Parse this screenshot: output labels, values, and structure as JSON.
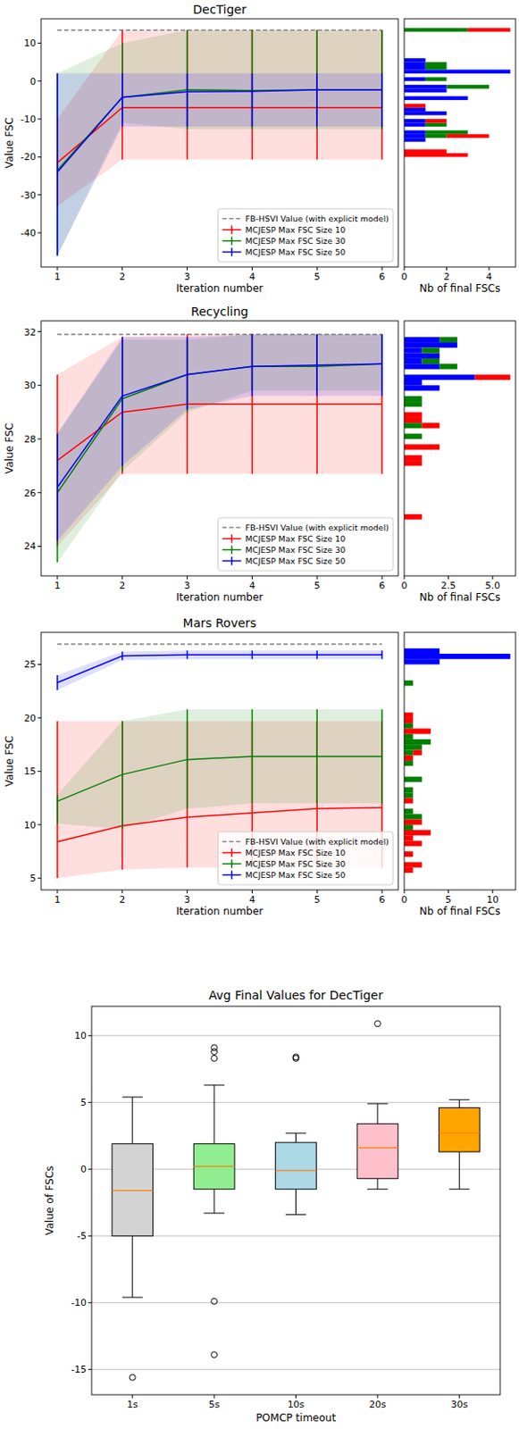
{
  "chart_data": [
    {
      "type": "line",
      "title": "DecTiger",
      "x_label": "Iteration number",
      "y_label": "Value FSC",
      "x": [
        1,
        2,
        3,
        4,
        5,
        6
      ],
      "xlim": [
        0.75,
        6.25
      ],
      "ylim": [
        -49,
        16.4
      ],
      "xticks": [
        1,
        2,
        3,
        4,
        5,
        6
      ],
      "yticks": [
        -40,
        -30,
        -20,
        -10,
        0,
        10
      ],
      "legend": "lower right",
      "series": [
        {
          "name": "FB-HSVI Value (with explicit model)",
          "color": "#808080",
          "line_style": "dashed",
          "values": [
            13.4,
            13.4,
            13.4,
            13.4,
            13.4,
            13.4
          ]
        },
        {
          "name": "MCJESP Max FSC Size 10",
          "color": "#ff0000",
          "values": [
            -21.5,
            -7,
            -7,
            -7,
            -7,
            -7
          ],
          "lower": [
            -33,
            -20.7,
            -20.7,
            -20.7,
            -20.7,
            -20.7
          ],
          "upper": [
            -10,
            13.4,
            13.4,
            13.4,
            13.4,
            13.4
          ]
        },
        {
          "name": "MCJESP Max FSC Size 30",
          "color": "#008000",
          "values": [
            -23.5,
            -4.3,
            -2.3,
            -2.5,
            -2.3,
            -2.3
          ],
          "lower": [
            -46,
            -11,
            -12.7,
            -12.7,
            -12.7,
            -12.7
          ],
          "upper": [
            2,
            10,
            13.4,
            13.4,
            13.4,
            13.4
          ]
        },
        {
          "name": "MCJESP Max FSC Size 50",
          "color": "#0000ff",
          "values": [
            -24,
            -4.3,
            -2.8,
            -2.7,
            -2.3,
            -2.3
          ],
          "lower": [
            -46,
            -12,
            -12,
            -12,
            -12,
            -12
          ],
          "upper": [
            2,
            2,
            2,
            2,
            2,
            2
          ]
        }
      ]
    },
    {
      "type": "histogram",
      "orientation": "horizontal",
      "stacked": true,
      "x_label": "Nb of final FSCs",
      "xlim": [
        0,
        5.25
      ],
      "xticks": [
        0,
        2,
        4
      ],
      "ylim": [
        -49,
        16.4
      ],
      "tick_labels": "x",
      "bins": [
        -21,
        -20,
        -19,
        -18,
        -17,
        -16,
        -15,
        -14,
        -13,
        -12,
        -11,
        -10,
        -9,
        -8,
        -7,
        -6,
        -5,
        -4,
        -3,
        -2,
        -1,
        0,
        1,
        2,
        3,
        4,
        5,
        6,
        7,
        8,
        9,
        10,
        11,
        12,
        13,
        14
      ],
      "series": [
        {
          "color": "#0000ff",
          "counts": [
            0,
            0,
            0,
            0,
            0,
            1,
            1,
            1,
            0,
            1,
            1,
            0,
            2,
            1,
            0,
            0,
            3,
            0,
            2,
            2,
            0,
            1,
            0,
            5,
            1,
            1,
            1,
            0,
            0,
            0,
            0,
            0,
            0,
            0,
            0
          ]
        },
        {
          "color": "#008000",
          "counts": [
            0,
            0,
            0,
            0,
            0,
            0,
            1,
            2,
            0,
            1,
            0,
            0,
            0,
            0,
            0,
            0,
            0,
            0,
            0,
            2,
            0,
            1,
            0,
            0,
            1,
            1,
            0,
            0,
            0,
            0,
            0,
            0,
            0,
            0,
            3
          ]
        },
        {
          "color": "#ff0000",
          "counts": [
            0,
            3,
            2,
            0,
            0,
            0,
            2,
            0,
            0,
            0,
            1,
            0,
            0,
            0,
            1,
            0,
            0,
            0,
            0,
            0,
            0,
            0,
            0,
            0,
            0,
            0,
            0,
            0,
            0,
            0,
            0,
            0,
            0,
            0,
            2
          ]
        }
      ]
    },
    {
      "type": "line",
      "title": "Recycling",
      "x_label": "Iteration number",
      "y_label": "Value FSC",
      "x": [
        1,
        2,
        3,
        4,
        5,
        6
      ],
      "xlim": [
        0.75,
        6.25
      ],
      "ylim": [
        22.9,
        32.4
      ],
      "xticks": [
        1,
        2,
        3,
        4,
        5,
        6
      ],
      "yticks": [
        24,
        26,
        28,
        30,
        32
      ],
      "legend": "lower right",
      "series": [
        {
          "name": "FB-HSVI Value (with explicit model)",
          "color": "#808080",
          "line_style": "dashed",
          "values": [
            31.9,
            31.9,
            31.9,
            31.9,
            31.9,
            31.9
          ]
        },
        {
          "name": "MCJESP Max FSC Size 10",
          "color": "#ff0000",
          "values": [
            27.2,
            29.0,
            29.3,
            29.3,
            29.3,
            29.3
          ],
          "lower": [
            24.0,
            26.7,
            26.7,
            26.7,
            26.7,
            26.7
          ],
          "upper": [
            30.4,
            31.8,
            31.9,
            31.9,
            31.9,
            31.9
          ]
        },
        {
          "name": "MCJESP Max FSC Size 30",
          "color": "#008000",
          "values": [
            26.0,
            29.5,
            30.4,
            30.7,
            30.7,
            30.8
          ],
          "lower": [
            23.4,
            26.8,
            29.0,
            29.8,
            29.8,
            29.8
          ],
          "upper": [
            28.2,
            31.7,
            31.7,
            31.9,
            31.9,
            31.9
          ]
        },
        {
          "name": "MCJESP Max FSC Size 50",
          "color": "#0000ff",
          "values": [
            26.2,
            29.6,
            30.4,
            30.7,
            30.75,
            30.8
          ],
          "lower": [
            24.2,
            27.0,
            29.1,
            29.6,
            29.6,
            29.6
          ],
          "upper": [
            28.2,
            31.8,
            31.8,
            31.9,
            31.9,
            31.9
          ]
        }
      ]
    },
    {
      "type": "histogram",
      "orientation": "horizontal",
      "stacked": true,
      "x_label": "Nb of final FSCs",
      "xlim": [
        0,
        6.3
      ],
      "xticks": [
        0,
        2.5,
        {
          "value": 5,
          "label": "5.0"
        }
      ],
      "ylim": [
        22.9,
        32.4
      ],
      "tick_labels": "x",
      "bins": [
        24.8,
        25,
        25.2,
        25.4,
        25.6,
        25.8,
        26,
        26.2,
        26.4,
        26.6,
        26.8,
        27,
        27.2,
        27.4,
        27.6,
        27.8,
        28,
        28.2,
        28.4,
        28.6,
        28.8,
        29,
        29.2,
        29.4,
        29.6,
        29.8,
        30,
        30.2,
        30.4,
        30.6,
        30.8,
        31,
        31.2,
        31.4,
        31.6,
        31.8,
        32
      ],
      "series": [
        {
          "color": "#0000ff",
          "counts": [
            0,
            0,
            0,
            0,
            0,
            0,
            0,
            0,
            0,
            0,
            0,
            0,
            0,
            0,
            0,
            0,
            0,
            0,
            0,
            0,
            0,
            0,
            0,
            0,
            0,
            2,
            1,
            4,
            0,
            2,
            1,
            2,
            1,
            3,
            2,
            0
          ]
        },
        {
          "color": "#008000",
          "counts": [
            0,
            0,
            0,
            0,
            0,
            0,
            0,
            0,
            0,
            0,
            0,
            0,
            0,
            0,
            0,
            0,
            1,
            0,
            1,
            0,
            0,
            0,
            1,
            1,
            0,
            0,
            0,
            0,
            0,
            1,
            1,
            0,
            1,
            0,
            1,
            0
          ]
        },
        {
          "color": "#ff0000",
          "counts": [
            0,
            1,
            0,
            0,
            0,
            0,
            0,
            0,
            0,
            0,
            0,
            1,
            1,
            0,
            2,
            0,
            0,
            0,
            1,
            1,
            1,
            0,
            0,
            0,
            0,
            0,
            0,
            2,
            0,
            0,
            0,
            0,
            0,
            0,
            0,
            0
          ]
        }
      ]
    },
    {
      "type": "line",
      "title": "Mars Rovers",
      "x_label": "Iteration number",
      "y_label": "Value FSC",
      "x": [
        1,
        2,
        3,
        4,
        5,
        6
      ],
      "xlim": [
        0.75,
        6.25
      ],
      "ylim": [
        3.9,
        28.0
      ],
      "xticks": [
        1,
        2,
        3,
        4,
        5,
        6
      ],
      "yticks": [
        5,
        10,
        15,
        20,
        25
      ],
      "legend": "lower right",
      "series": [
        {
          "name": "FB-HSVI Value (with explicit model)",
          "color": "#808080",
          "line_style": "dashed",
          "values": [
            26.9,
            26.9,
            26.9,
            26.9,
            26.9,
            26.9
          ]
        },
        {
          "name": "MCJESP Max FSC Size 10",
          "color": "#ff0000",
          "values": [
            8.4,
            9.9,
            10.7,
            11.1,
            11.5,
            11.6
          ],
          "lower": [
            5.0,
            5.8,
            6.0,
            6.0,
            6.0,
            6.0
          ],
          "upper": [
            19.7,
            19.7,
            19.7,
            19.7,
            19.7,
            19.7
          ]
        },
        {
          "name": "MCJESP Max FSC Size 30",
          "color": "#008000",
          "values": [
            12.2,
            14.7,
            16.1,
            16.4,
            16.4,
            16.4
          ],
          "lower": [
            10.1,
            9.6,
            11.5,
            12.0,
            12.0,
            12.0
          ],
          "upper": [
            12.8,
            19.7,
            20.8,
            20.8,
            20.8,
            20.8
          ]
        },
        {
          "name": "MCJESP Max FSC Size 50",
          "color": "#0000ff",
          "values": [
            23.3,
            25.8,
            25.9,
            25.9,
            25.9,
            25.9
          ],
          "lower": [
            22.6,
            25.4,
            25.5,
            25.5,
            25.5,
            25.5
          ],
          "upper": [
            24.0,
            26.2,
            26.3,
            26.3,
            26.3,
            26.3
          ]
        }
      ]
    },
    {
      "type": "histogram",
      "orientation": "horizontal",
      "stacked": true,
      "x_label": "Nb of final FSCs",
      "xlim": [
        0,
        12.6
      ],
      "xticks": [
        0,
        5,
        10
      ],
      "ylim": [
        3.9,
        28.0
      ],
      "tick_labels": "x",
      "bins": [
        5,
        5.5,
        6,
        6.5,
        7,
        7.5,
        8,
        8.5,
        9,
        9.5,
        10,
        10.5,
        11,
        11.5,
        12,
        12.5,
        13,
        13.5,
        14,
        14.5,
        15,
        15.5,
        16,
        16.5,
        17,
        17.5,
        18,
        18.5,
        19,
        19.5,
        20,
        20.5,
        21,
        21.5,
        22,
        22.5,
        23,
        23.5,
        24,
        24.5,
        25,
        25.5,
        26,
        26.5,
        27
      ],
      "series": [
        {
          "color": "#0000ff",
          "counts": [
            0,
            0,
            0,
            0,
            0,
            0,
            0,
            0,
            0,
            0,
            0,
            0,
            0,
            0,
            0,
            0,
            0,
            0,
            0,
            0,
            0,
            0,
            0,
            0,
            0,
            0,
            0,
            0,
            0,
            0,
            0,
            0,
            0,
            0,
            0,
            0,
            0,
            0,
            0,
            0,
            4,
            12,
            4,
            0
          ]
        },
        {
          "color": "#008000",
          "counts": [
            0,
            0,
            0,
            0,
            0,
            0,
            0,
            0,
            0,
            1,
            0,
            2,
            1,
            0,
            0,
            1,
            1,
            0,
            2,
            0,
            0,
            1,
            0,
            1,
            2,
            3,
            1,
            0,
            1,
            0,
            0,
            0,
            0,
            0,
            0,
            0,
            1,
            0,
            0,
            0,
            0,
            0,
            0,
            0
          ]
        },
        {
          "color": "#ff0000",
          "counts": [
            0,
            1,
            2,
            0,
            1,
            0,
            2,
            1,
            3,
            0,
            2,
            0,
            0,
            0,
            1,
            0,
            0,
            0,
            0,
            0,
            0,
            0,
            1,
            1,
            0,
            0,
            0,
            3,
            0,
            1,
            1,
            0,
            0,
            0,
            0,
            0,
            0,
            0,
            0,
            0,
            0,
            0,
            0,
            0
          ]
        }
      ]
    },
    {
      "type": "box",
      "title": "Avg Final Values for DecTiger",
      "x_label": "POMCP timeout",
      "y_label": "Value of FSCs",
      "categories": [
        "1s",
        "5s",
        "10s",
        "20s",
        "30s"
      ],
      "colors": [
        "#d3d3d3",
        "#90ee90",
        "#add8e6",
        "#ffc0cb",
        "#ffa500"
      ],
      "ylim": [
        -16.9,
        12.2
      ],
      "yticks": [
        -15,
        -10,
        -5,
        0,
        5,
        10
      ],
      "grid": "y",
      "boxes": [
        {
          "whisker_low": -9.6,
          "q1": -5.0,
          "median": -1.6,
          "q3": 1.9,
          "whisker_high": 5.4,
          "outliers": [
            -15.6
          ]
        },
        {
          "whisker_low": -3.3,
          "q1": -1.5,
          "median": 0.2,
          "q3": 1.9,
          "whisker_high": 6.3,
          "outliers": [
            8.3,
            8.8,
            9.1,
            -9.9,
            -13.9
          ]
        },
        {
          "whisker_low": -3.4,
          "q1": -1.5,
          "median": -0.1,
          "q3": 2.0,
          "whisker_high": 2.7,
          "outliers": [
            8.3,
            8.4
          ]
        },
        {
          "whisker_low": -1.5,
          "q1": -0.7,
          "median": 1.6,
          "q3": 3.4,
          "whisker_high": 4.9,
          "outliers": [
            10.9
          ]
        },
        {
          "whisker_low": -1.5,
          "q1": 1.3,
          "median": 2.7,
          "q3": 4.6,
          "whisker_high": 5.2,
          "outliers": []
        }
      ]
    }
  ]
}
